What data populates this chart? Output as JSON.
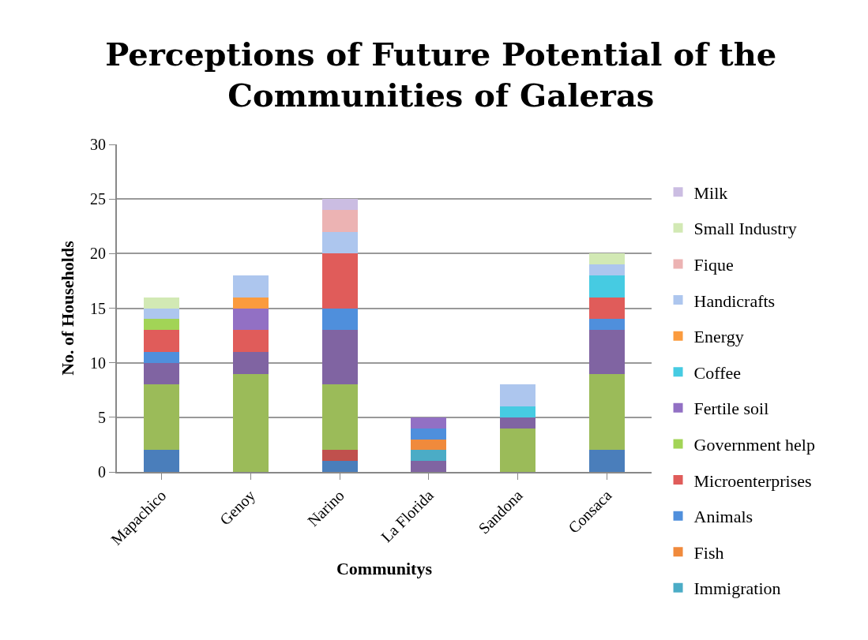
{
  "chart_data": {
    "type": "bar",
    "title": "Perceptions of Future Potential of the\nCommunities of Galeras",
    "xlabel": "Communitys",
    "ylabel": "No. of Households",
    "categories": [
      "Mapachico",
      "Genoy",
      "Narino",
      "La Florida",
      "Sandona",
      "Consaca"
    ],
    "stacked": true,
    "ylim": [
      0,
      30
    ],
    "yticks": [
      0,
      5,
      10,
      15,
      20,
      25,
      30
    ],
    "grid": "y",
    "legend": "right",
    "series": [
      {
        "color": "#4a7ebb",
        "values": [
          2,
          null,
          1,
          null,
          null,
          2
        ]
      },
      {
        "color": "#c0504d",
        "values": [
          null,
          null,
          1,
          null,
          null,
          null
        ]
      },
      {
        "color": "#9bbb59",
        "values": [
          6,
          9,
          6,
          null,
          4,
          7
        ]
      },
      {
        "color": "#8064a2",
        "values": [
          2,
          2,
          5,
          1,
          1,
          4
        ]
      },
      {
        "name": "Immigration",
        "color": "#4bacc6",
        "values": [
          null,
          null,
          null,
          1,
          null,
          null
        ]
      },
      {
        "name": "Fish",
        "color": "#f08a3c",
        "values": [
          null,
          null,
          null,
          1,
          null,
          null
        ]
      },
      {
        "name": "Animals",
        "color": "#4f8fdc",
        "values": [
          1,
          null,
          2,
          1,
          null,
          1
        ]
      },
      {
        "name": "Microenterprises",
        "color": "#e05c5a",
        "values": [
          2,
          2,
          5,
          null,
          null,
          2
        ]
      },
      {
        "name": "Government help",
        "color": "#a2d456",
        "values": [
          1,
          null,
          null,
          null,
          null,
          null
        ]
      },
      {
        "name": "Fertile soil",
        "color": "#9270c4",
        "values": [
          null,
          2,
          null,
          1,
          null,
          null
        ]
      },
      {
        "name": "Coffee",
        "color": "#46cbe2",
        "values": [
          null,
          null,
          null,
          null,
          1,
          2
        ]
      },
      {
        "name": "Energy",
        "color": "#fb9b3e",
        "values": [
          null,
          1,
          null,
          null,
          null,
          null
        ]
      },
      {
        "name": "Handicrafts",
        "color": "#adc6ee",
        "values": [
          1,
          2,
          2,
          null,
          2,
          1
        ]
      },
      {
        "name": "Fique",
        "color": "#ecb3b3",
        "values": [
          null,
          null,
          2,
          null,
          null,
          null
        ]
      },
      {
        "name": "Small Industry",
        "color": "#d2e9b4",
        "values": [
          1,
          null,
          null,
          null,
          null,
          1
        ]
      },
      {
        "name": "Milk",
        "color": "#cbbde2",
        "values": [
          null,
          null,
          1,
          null,
          null,
          null
        ]
      }
    ]
  }
}
